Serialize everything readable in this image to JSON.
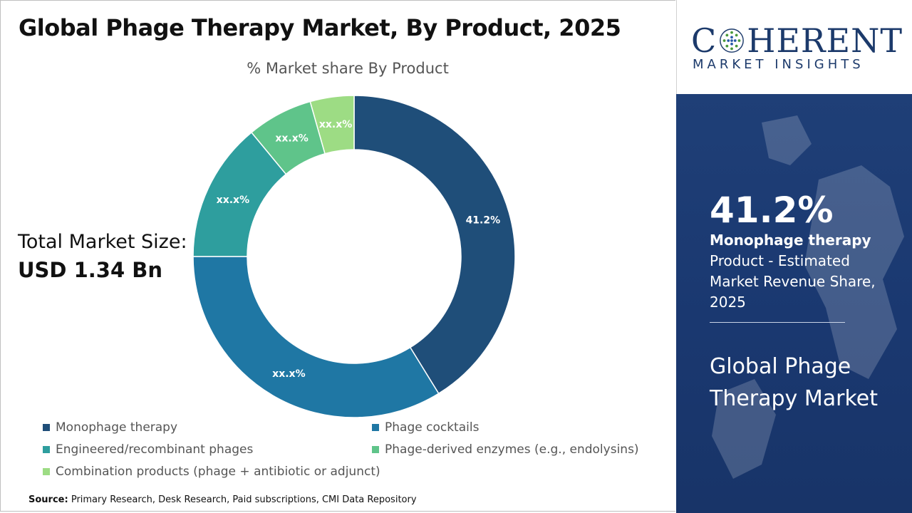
{
  "title": "Global Phage Therapy Market, By Product, 2025",
  "total_market": {
    "label": "Total Market Size:",
    "value": "USD 1.34 Bn"
  },
  "source": {
    "label": "Source:",
    "text": "Primary Research, Desk Research, Paid subscriptions, CMI Data Repository"
  },
  "logo": {
    "main_left": "C",
    "main_right": "HERENT",
    "sub": "MARKET INSIGHTS"
  },
  "highlight": {
    "value": "41.2%",
    "name": "Monophage therapy",
    "description": "Product - Estimated Market Revenue Share, 2025",
    "market_name": "Global Phage Therapy Market"
  },
  "chart_data": {
    "type": "pie",
    "subtitle": "% Market share By Product",
    "donut": true,
    "legend_position": "bottom",
    "series": [
      {
        "name": "Monophage therapy",
        "value": 41.2,
        "label": "41.2%",
        "color": "#1f4e79"
      },
      {
        "name": "Phage cocktails",
        "value": 33.8,
        "label": "xx.x%",
        "color": "#1f77a4"
      },
      {
        "name": "Engineered/recombinant phages",
        "value": 14.0,
        "label": "xx.x%",
        "color": "#2e9e9e"
      },
      {
        "name": "Phage-derived enzymes (e.g., endolysins)",
        "value": 6.6,
        "label": "xx.x%",
        "color": "#5fc48a"
      },
      {
        "name": "Combination products (phage + antibiotic or adjunct)",
        "value": 4.4,
        "label": "xx.x%",
        "color": "#9ddc84"
      }
    ]
  }
}
